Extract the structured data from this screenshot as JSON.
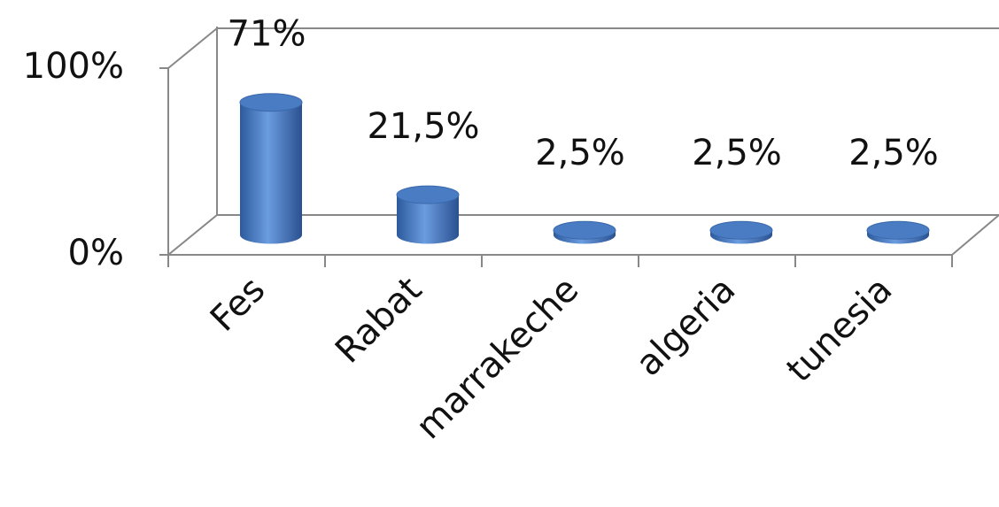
{
  "chart_data": {
    "type": "bar",
    "categories": [
      "Fes",
      "Rabat",
      "marrakeche",
      "algeria",
      "tunesia"
    ],
    "values": [
      71,
      21.5,
      2.5,
      2.5,
      2.5
    ],
    "value_labels": [
      "71%",
      "21,5%",
      "2,5%",
      "2,5%",
      "2,5%"
    ],
    "color": "#4a7cc4",
    "ylim": [
      0,
      100
    ],
    "yticks": [
      {
        "value": 0,
        "label": "0%"
      },
      {
        "value": 100,
        "label": "100%"
      }
    ],
    "grid": true
  }
}
